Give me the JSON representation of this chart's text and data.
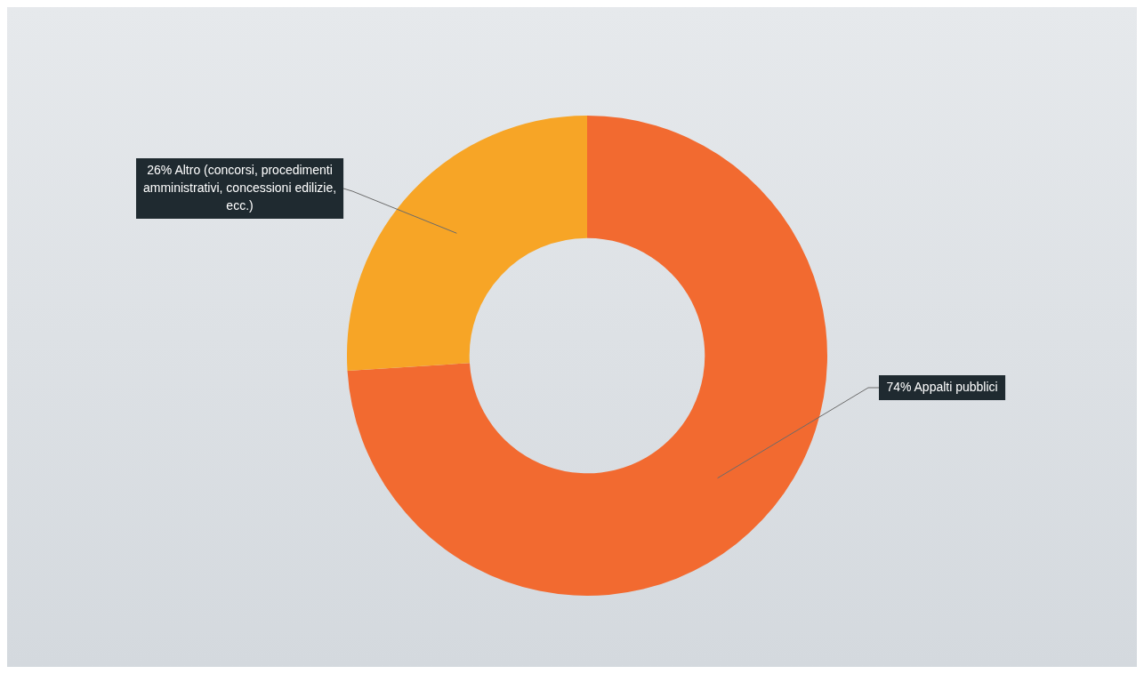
{
  "chart_data": {
    "type": "donut",
    "categories": [
      "Appalti pubblici",
      "Altro (concorsi, procedimenti amministrativi, concessioni edilizie, ecc.)"
    ],
    "values": [
      74,
      26
    ],
    "colors": [
      "#f26a30",
      "#f7a526"
    ],
    "value_labels": [
      "74%",
      "26%"
    ],
    "legend": false
  }
}
